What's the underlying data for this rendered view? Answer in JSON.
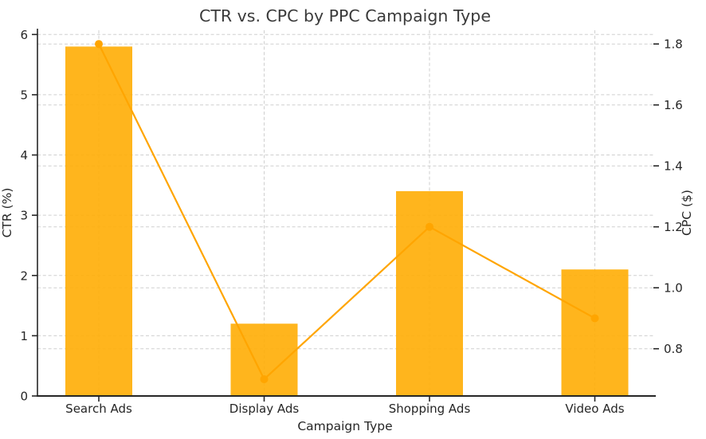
{
  "chart_data": {
    "type": "bar+line",
    "title": "CTR vs. CPC by PPC Campaign Type",
    "xlabel": "Campaign Type",
    "categories": [
      "Search Ads",
      "Display Ads",
      "Shopping Ads",
      "Video Ads"
    ],
    "series": [
      {
        "name": "CTR",
        "chart": "bar",
        "axis": "left",
        "values": [
          5.8,
          1.2,
          3.4,
          2.1
        ],
        "color": "#FFAF0A",
        "opacity": 0.92
      },
      {
        "name": "CPC",
        "chart": "line",
        "axis": "right",
        "values": [
          1.8,
          0.7,
          1.2,
          0.9
        ],
        "color": "#FFA500",
        "marker": "circle"
      }
    ],
    "left_axis": {
      "label": "CTR (%)",
      "ticks": [
        0,
        1,
        2,
        3,
        4,
        5,
        6
      ],
      "range": [
        0,
        6.07
      ]
    },
    "right_axis": {
      "label": "CPC ($)",
      "ticks": [
        0.8,
        1.0,
        1.2,
        1.4,
        1.6,
        1.8
      ],
      "range": [
        0.645,
        1.845
      ]
    },
    "grid": {
      "show": true,
      "style": "dashed",
      "color": "#cfcfcf",
      "vertical_lines_at_categories": true
    },
    "legend": "none",
    "colors": {
      "spine": "#262626",
      "tick_text": "#262626",
      "title_text": "#3a3a3a",
      "background": "#ffffff"
    }
  }
}
